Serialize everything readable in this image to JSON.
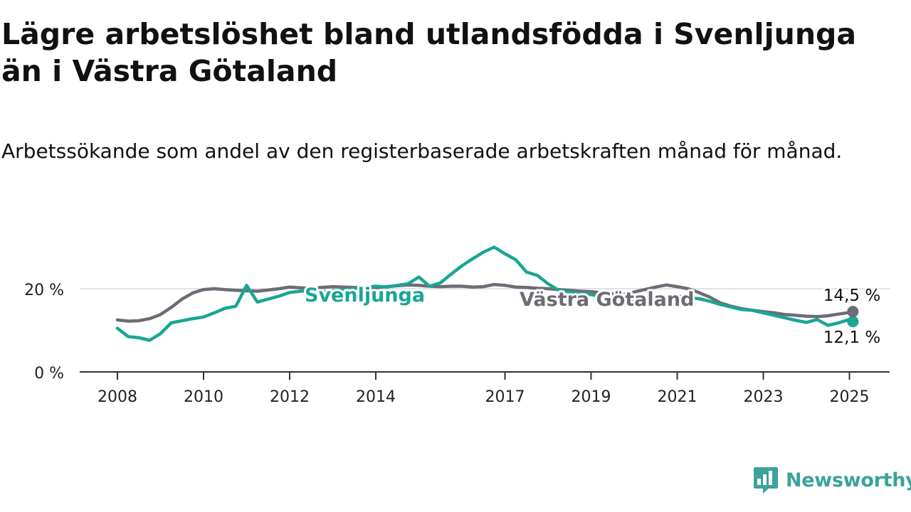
{
  "title": "Lägre arbetslöshet bland utlandsfödda i Svenljunga än i Västra Götaland",
  "subtitle": "Arbetssökande som andel av den registerbaserade arbetskraften månad för månad.",
  "brand": "Newsworthy",
  "colors": {
    "svenljunga": "#1aa595",
    "vastra": "#6d6c75",
    "grid": "#d8d8d8",
    "axis": "#333333"
  },
  "chart_data": {
    "type": "line",
    "y_tick_labels": [
      "0 %",
      "20 %"
    ],
    "y_ticks": [
      0,
      20
    ],
    "ylim": [
      0,
      31
    ],
    "x_tick_labels": [
      "2008",
      "2010",
      "2012",
      "2014",
      "2017",
      "2019",
      "2021",
      "2023",
      "2025"
    ],
    "x_ticks": [
      2008.0,
      2010.0,
      2012.0,
      2014.0,
      2017.0,
      2019.0,
      2021.0,
      2023.0,
      2025.0
    ],
    "xlim": [
      2007.2,
      2026.0
    ],
    "series": [
      {
        "name": "Svenljunga",
        "key": "svenljunga",
        "end_label": "12,1 %",
        "x": [
          2008.0,
          2008.25,
          2008.5,
          2008.75,
          2009.0,
          2009.25,
          2009.5,
          2009.75,
          2010.0,
          2010.25,
          2010.5,
          2010.75,
          2011.0,
          2011.25,
          2011.5,
          2011.75,
          2012.0,
          2012.25,
          2012.5,
          2012.75,
          2013.0,
          2013.25,
          2013.5,
          2013.75,
          2014.0,
          2014.25,
          2014.5,
          2014.75,
          2015.0,
          2015.25,
          2015.5,
          2015.75,
          2016.0,
          2016.25,
          2016.5,
          2016.75,
          2017.0,
          2017.25,
          2017.5,
          2017.75,
          2018.0,
          2018.25,
          2018.5,
          2018.75,
          2019.0,
          2019.25,
          2019.5,
          2019.75,
          2020.0,
          2020.25,
          2020.5,
          2020.75,
          2021.0,
          2021.25,
          2021.5,
          2021.75,
          2022.0,
          2022.25,
          2022.5,
          2022.75,
          2023.0,
          2023.25,
          2023.5,
          2023.75,
          2024.0,
          2024.25,
          2024.5,
          2024.75,
          2025.0,
          2025.08
        ],
        "y": [
          10.5,
          8.5,
          8.2,
          7.6,
          9.2,
          11.8,
          12.3,
          12.8,
          13.2,
          14.2,
          15.3,
          15.8,
          20.8,
          16.8,
          17.5,
          18.2,
          19.1,
          19.4,
          19.6,
          19.3,
          19.5,
          19.8,
          20.0,
          20.3,
          20.6,
          20.4,
          20.8,
          21.2,
          22.8,
          20.6,
          21.4,
          23.5,
          25.5,
          27.2,
          28.8,
          30.0,
          28.4,
          27.0,
          24.0,
          23.2,
          21.2,
          19.6,
          19.2,
          18.8,
          18.6,
          18.0,
          17.6,
          17.2,
          16.8,
          17.2,
          17.6,
          18.0,
          18.2,
          17.9,
          17.6,
          17.0,
          16.2,
          15.6,
          15.0,
          14.8,
          14.2,
          13.6,
          13.0,
          12.4,
          11.9,
          12.6,
          11.2,
          11.8,
          12.6,
          12.1
        ]
      },
      {
        "name": "Västra Götaland",
        "key": "vastra",
        "end_label": "14,5 %",
        "x": [
          2008.0,
          2008.25,
          2008.5,
          2008.75,
          2009.0,
          2009.25,
          2009.5,
          2009.75,
          2010.0,
          2010.25,
          2010.5,
          2010.75,
          2011.0,
          2011.25,
          2011.5,
          2011.75,
          2012.0,
          2012.25,
          2012.5,
          2012.75,
          2013.0,
          2013.25,
          2013.5,
          2013.75,
          2014.0,
          2014.25,
          2014.5,
          2014.75,
          2015.0,
          2015.25,
          2015.5,
          2015.75,
          2016.0,
          2016.25,
          2016.5,
          2016.75,
          2017.0,
          2017.25,
          2017.5,
          2017.75,
          2018.0,
          2018.25,
          2018.5,
          2018.75,
          2019.0,
          2019.25,
          2019.5,
          2019.75,
          2020.0,
          2020.25,
          2020.5,
          2020.75,
          2021.0,
          2021.25,
          2021.5,
          2021.75,
          2022.0,
          2022.25,
          2022.5,
          2022.75,
          2023.0,
          2023.25,
          2023.5,
          2023.75,
          2024.0,
          2024.25,
          2024.5,
          2024.75,
          2025.0,
          2025.08
        ],
        "y": [
          12.5,
          12.2,
          12.3,
          12.8,
          13.8,
          15.5,
          17.5,
          19.0,
          19.8,
          20.0,
          19.8,
          19.6,
          19.5,
          19.4,
          19.7,
          20.0,
          20.4,
          20.2,
          20.1,
          20.3,
          20.5,
          20.4,
          20.3,
          20.1,
          20.2,
          20.5,
          20.7,
          20.9,
          20.8,
          20.6,
          20.5,
          20.6,
          20.6,
          20.4,
          20.5,
          21.0,
          20.8,
          20.4,
          20.3,
          20.1,
          20.0,
          19.8,
          19.6,
          19.4,
          19.3,
          19.0,
          18.8,
          18.6,
          19.2,
          19.8,
          20.4,
          20.9,
          20.5,
          20.0,
          19.1,
          18.0,
          16.6,
          15.8,
          15.2,
          14.8,
          14.5,
          14.2,
          13.8,
          13.6,
          13.4,
          13.3,
          13.5,
          13.9,
          14.3,
          14.5
        ]
      }
    ],
    "inline_labels": {
      "svenljunga": "Svenljunga",
      "vastra": "Västra Götaland"
    }
  }
}
